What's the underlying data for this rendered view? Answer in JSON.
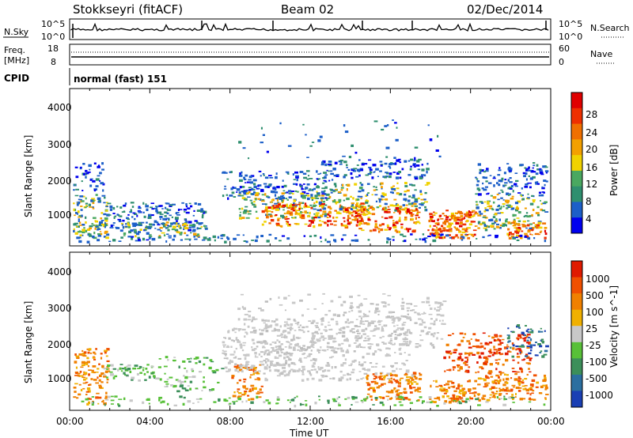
{
  "header": {
    "station": "Stokkseyri (fitACF)",
    "beam": "Beam 02",
    "date": "02/Dec/2014"
  },
  "top_panels": {
    "nsky": {
      "label": "N.Sky",
      "ticks": [
        "10^5",
        "10^0"
      ],
      "right_ticks": [
        "10^5",
        "10^0"
      ],
      "right_label": "N.Search"
    },
    "freq": {
      "label_line1": "Freq.",
      "label_line2": "[MHz]",
      "ticks": [
        "18",
        "8"
      ],
      "right_ticks": [
        "60",
        "0"
      ],
      "right_label": "Nave"
    },
    "cpid": {
      "label": "CPID",
      "text": "normal (fast) 151"
    }
  },
  "chart_data": [
    {
      "type": "heatmap",
      "ylabel": "Slant Range [km]",
      "xlabel": "",
      "yticks": [
        "4000",
        "3000",
        "2000",
        "1000"
      ],
      "ylim": [
        200,
        4600
      ],
      "colorbar": {
        "label": "Power [dB]",
        "ticks": [
          "28",
          "24",
          "20",
          "16",
          "12",
          "8",
          "4"
        ],
        "colors": [
          "#0000ee",
          "#1c5fc8",
          "#2f8f6f",
          "#4aa860",
          "#f0d200",
          "#f3a000",
          "#f07000",
          "#ee3000",
          "#e00000"
        ]
      }
    },
    {
      "type": "heatmap",
      "ylabel": "Slant Range [km]",
      "xlabel": "Time UT",
      "yticks": [
        "4000",
        "3000",
        "2000",
        "1000"
      ],
      "xticks": [
        "00:00",
        "04:00",
        "08:00",
        "12:00",
        "16:00",
        "20:00",
        "00:00"
      ],
      "ylim": [
        200,
        4600
      ],
      "colorbar": {
        "label": "Velocity [m s^-1]",
        "ticks": [
          "1000",
          "500",
          "100",
          "25",
          "-25",
          "-100",
          "-500",
          "-1000"
        ],
        "colors": [
          "#1a3fb4",
          "#2b6fa0",
          "#3c8f5a",
          "#58c038",
          "#c8c8c8",
          "#f0b000",
          "#f08000",
          "#f05000",
          "#e01a00"
        ]
      }
    }
  ]
}
